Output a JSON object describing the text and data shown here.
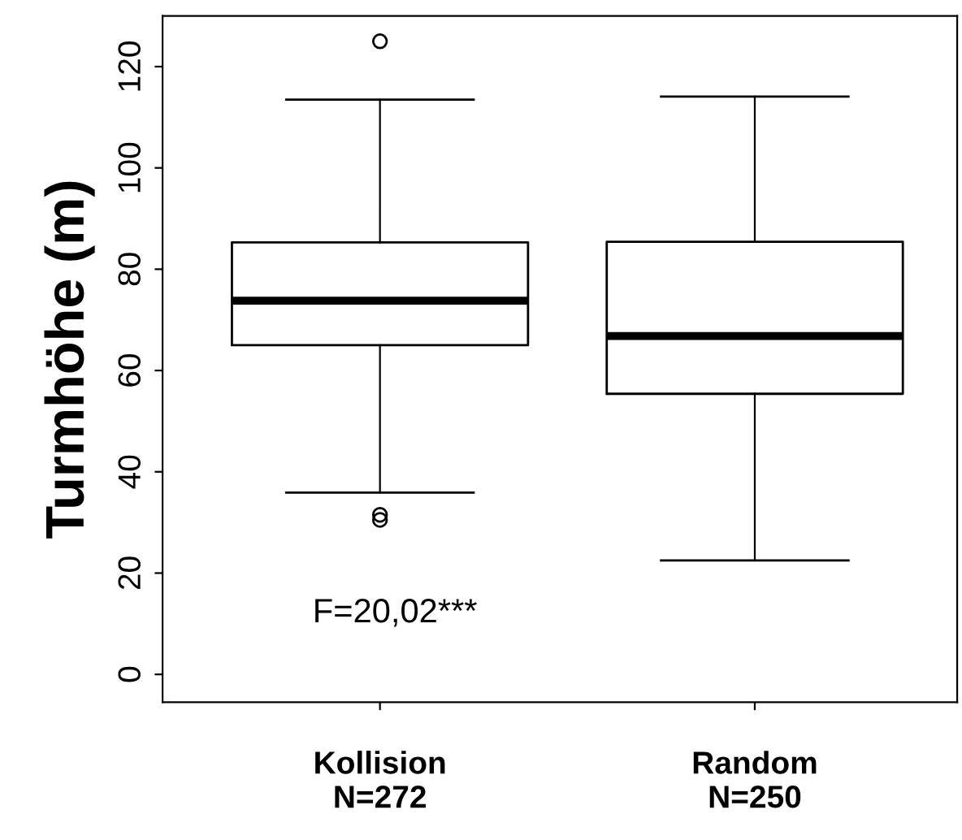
{
  "chart_data": {
    "type": "box",
    "ylabel": "Turmhöhe (m)",
    "categories": [
      "Kollision\nN=272",
      "Random\nN=250"
    ],
    "boxes": [
      {
        "low": 35.9,
        "q1": 65.0,
        "median": 73.8,
        "q3": 85.3,
        "high": 113.5,
        "outliers": [
          125,
          31.5,
          30.5
        ]
      },
      {
        "low": 22.5,
        "q1": 55.4,
        "median": 66.8,
        "q3": 85.4,
        "high": 114.1
      }
    ],
    "ylim": [
      -5.5,
      130
    ],
    "yticks": [
      0,
      20,
      40,
      60,
      80,
      100,
      120
    ],
    "annotations": [
      "F=20,02***"
    ],
    "grid": false,
    "legend": false
  }
}
